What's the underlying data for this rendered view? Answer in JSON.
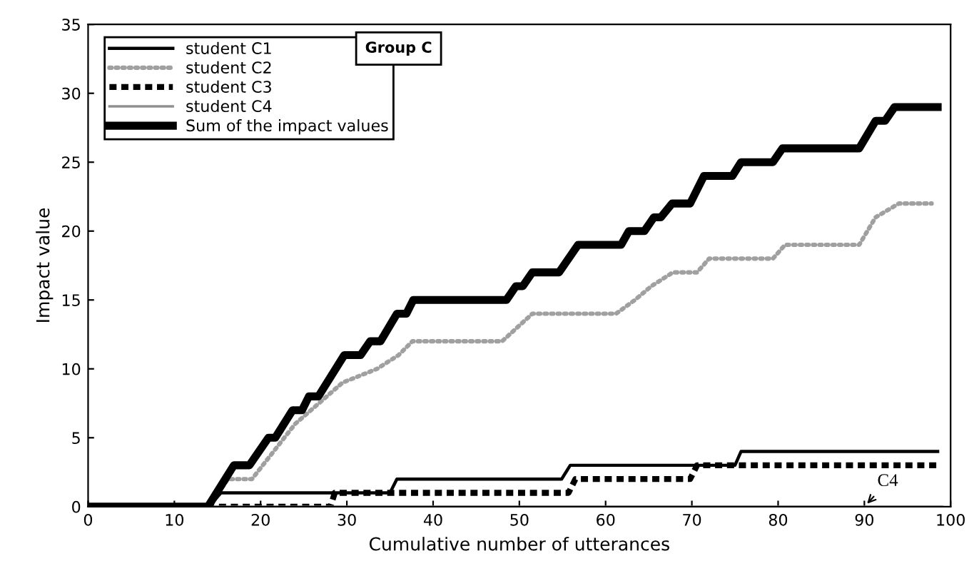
{
  "chart_data": {
    "type": "line",
    "xlabel": "Cumulative number of utterances",
    "ylabel": "Impact value",
    "xlim": [
      0,
      100
    ],
    "xticks": [
      0,
      10,
      20,
      30,
      40,
      50,
      60,
      70,
      80,
      90,
      100
    ],
    "ylim": [
      0,
      35
    ],
    "yticks": [
      0,
      5,
      10,
      15,
      20,
      25,
      30,
      35
    ],
    "grid": false,
    "legend": "top left",
    "marker": "none",
    "annotations": [
      "Group C",
      {
        "text": "C4",
        "x": 90,
        "y": 0
      }
    ],
    "series": [
      {
        "name": "student C1",
        "color": "#000000",
        "line_style": "solid",
        "x": [
          0,
          14,
          15.4,
          35,
          35.8,
          54.9,
          55.9,
          75,
          75.7,
          98.5
        ],
        "values": [
          0,
          0,
          1,
          1,
          2,
          2,
          3,
          3,
          4,
          4
        ]
      },
      {
        "name": "student C2",
        "color": "#a0a0a0",
        "line_style": "dotted",
        "x": [
          0,
          14,
          16.2,
          19,
          24,
          29.5,
          33.5,
          36,
          37.6,
          48,
          51.5,
          61.2,
          63.4,
          65.3,
          67.8,
          70.6,
          72,
          79.4,
          80.8,
          89.4,
          91.3,
          94,
          97.8
        ],
        "values": [
          0,
          0,
          2,
          2,
          6,
          9,
          10,
          11,
          12,
          12,
          14,
          14,
          15,
          16,
          17,
          17,
          18,
          18,
          19,
          19,
          21,
          22,
          22
        ]
      },
      {
        "name": "student C3",
        "color": "#000000",
        "line_style": "dashed",
        "x": [
          0,
          28.1,
          28.6,
          55.7,
          56.5,
          69.8,
          70.6,
          98.7
        ],
        "values": [
          0,
          0,
          1,
          1,
          2,
          2,
          3,
          3
        ]
      },
      {
        "name": "student C4",
        "color": "#909090",
        "line_style": "solid",
        "x": [
          0,
          99
        ],
        "values": [
          0,
          0
        ]
      },
      {
        "name": "Sum of the impact values",
        "color": "#000000",
        "line_style": "solid",
        "x": [
          0,
          13.9,
          16.9,
          18.7,
          20.9,
          21.7,
          23.7,
          24.8,
          25.6,
          26.7,
          29.7,
          31.6,
          32.7,
          33.9,
          35.8,
          36.9,
          37.7,
          48.5,
          49.6,
          50.4,
          51.5,
          54.6,
          56.8,
          61.8,
          62.7,
          64.5,
          65.6,
          66.4,
          67.7,
          69.8,
          71.4,
          74.7,
          75.7,
          79.4,
          80.5,
          89.4,
          91.3,
          92.4,
          93.5,
          98.5
        ],
        "values": [
          0,
          0,
          3,
          3,
          5,
          5,
          7,
          7,
          8,
          8,
          11,
          11,
          12,
          12,
          14,
          14,
          15,
          15,
          16,
          16,
          17,
          17,
          19,
          19,
          20,
          20,
          21,
          21,
          22,
          22,
          24,
          24,
          25,
          25,
          26,
          26,
          28,
          28,
          29,
          29
        ]
      }
    ]
  }
}
